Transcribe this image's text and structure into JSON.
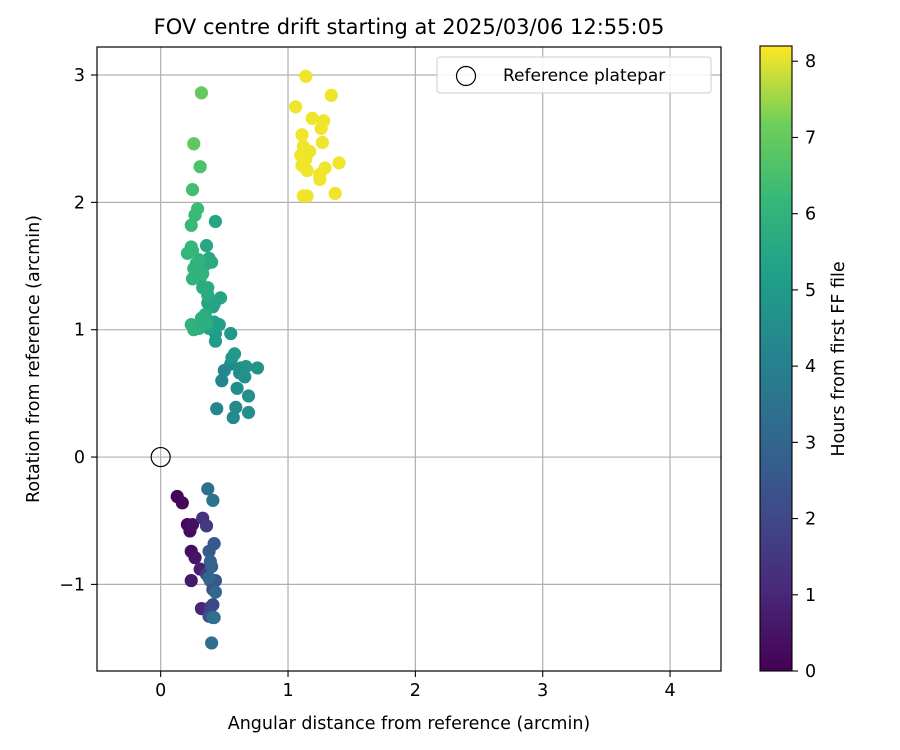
{
  "chart_data": {
    "type": "scatter",
    "title": "FOV centre drift starting at 2025/03/06 12:55:05",
    "xlabel": "Angular distance from reference (arcmin)",
    "ylabel": "Rotation from reference (arcmin)",
    "xlim": [
      -0.5,
      4.4
    ],
    "ylim": [
      -1.68,
      3.22
    ],
    "xticks": [
      0,
      1,
      2,
      3,
      4
    ],
    "xtick_labels": [
      "0",
      "1",
      "2",
      "3",
      "4"
    ],
    "yticks": [
      -1,
      0,
      1,
      2,
      3
    ],
    "ytick_labels": [
      "−1",
      "0",
      "1",
      "2",
      "3"
    ],
    "grid": true,
    "legend": {
      "position": "top-right",
      "entries": [
        "Reference platepar"
      ]
    },
    "colorbar": {
      "label": "Hours from first FF file",
      "range": [
        0,
        8.2
      ],
      "ticks": [
        0,
        1,
        2,
        3,
        4,
        5,
        6,
        7,
        8
      ],
      "tick_labels": [
        "0",
        "1",
        "2",
        "3",
        "4",
        "5",
        "6",
        "7",
        "8"
      ],
      "colormap": "viridis"
    },
    "reference_point": {
      "x": 0,
      "y": 0,
      "label": "Reference platepar"
    },
    "points": [
      {
        "x": 0.13,
        "y": -0.31,
        "c": 0.1
      },
      {
        "x": 0.17,
        "y": -0.36,
        "c": 0.2
      },
      {
        "x": 0.21,
        "y": -0.53,
        "c": 0.2
      },
      {
        "x": 0.23,
        "y": -0.58,
        "c": 0.3
      },
      {
        "x": 0.25,
        "y": -0.53,
        "c": 0.4
      },
      {
        "x": 0.24,
        "y": -0.74,
        "c": 0.4
      },
      {
        "x": 0.27,
        "y": -0.79,
        "c": 0.5
      },
      {
        "x": 0.24,
        "y": -0.97,
        "c": 0.6
      },
      {
        "x": 0.31,
        "y": -0.88,
        "c": 0.8
      },
      {
        "x": 0.32,
        "y": -1.19,
        "c": 1.0
      },
      {
        "x": 0.33,
        "y": -0.48,
        "c": 1.4
      },
      {
        "x": 0.36,
        "y": -0.54,
        "c": 1.6
      },
      {
        "x": 0.36,
        "y": -0.92,
        "c": 1.7
      },
      {
        "x": 0.39,
        "y": -1.18,
        "c": 1.8
      },
      {
        "x": 0.41,
        "y": -1.16,
        "c": 2.0
      },
      {
        "x": 0.38,
        "y": -1.25,
        "c": 2.1
      },
      {
        "x": 0.41,
        "y": -1.04,
        "c": 2.2
      },
      {
        "x": 0.39,
        "y": -0.97,
        "c": 2.4
      },
      {
        "x": 0.43,
        "y": -0.97,
        "c": 2.5
      },
      {
        "x": 0.42,
        "y": -0.68,
        "c": 2.5
      },
      {
        "x": 0.38,
        "y": -0.74,
        "c": 2.6
      },
      {
        "x": 0.39,
        "y": -0.82,
        "c": 2.8
      },
      {
        "x": 0.4,
        "y": -0.86,
        "c": 2.9
      },
      {
        "x": 0.38,
        "y": -0.95,
        "c": 3.0
      },
      {
        "x": 0.43,
        "y": -1.06,
        "c": 3.1
      },
      {
        "x": 0.41,
        "y": -1.26,
        "c": 3.2
      },
      {
        "x": 0.4,
        "y": -1.46,
        "c": 3.3
      },
      {
        "x": 0.42,
        "y": -1.26,
        "c": 3.4
      },
      {
        "x": 0.37,
        "y": -0.25,
        "c": 3.4
      },
      {
        "x": 0.41,
        "y": -0.34,
        "c": 3.5
      },
      {
        "x": 0.44,
        "y": 0.38,
        "c": 4.2
      },
      {
        "x": 0.48,
        "y": 0.6,
        "c": 4.3
      },
      {
        "x": 0.5,
        "y": 0.68,
        "c": 4.3
      },
      {
        "x": 0.55,
        "y": 0.73,
        "c": 4.4
      },
      {
        "x": 0.57,
        "y": 0.31,
        "c": 4.4
      },
      {
        "x": 0.59,
        "y": 0.39,
        "c": 4.4
      },
      {
        "x": 0.6,
        "y": 0.54,
        "c": 4.5
      },
      {
        "x": 0.62,
        "y": 0.66,
        "c": 4.5
      },
      {
        "x": 0.63,
        "y": 0.7,
        "c": 4.5
      },
      {
        "x": 0.66,
        "y": 0.63,
        "c": 4.6
      },
      {
        "x": 0.69,
        "y": 0.48,
        "c": 4.6
      },
      {
        "x": 0.69,
        "y": 0.35,
        "c": 4.6
      },
      {
        "x": 0.67,
        "y": 0.71,
        "c": 4.7
      },
      {
        "x": 0.76,
        "y": 0.7,
        "c": 4.7
      },
      {
        "x": 0.56,
        "y": 0.78,
        "c": 4.8
      },
      {
        "x": 0.58,
        "y": 0.81,
        "c": 4.9
      },
      {
        "x": 0.55,
        "y": 0.97,
        "c": 5.0
      },
      {
        "x": 0.43,
        "y": 0.91,
        "c": 5.1
      },
      {
        "x": 0.43,
        "y": 0.97,
        "c": 5.1
      },
      {
        "x": 0.46,
        "y": 1.04,
        "c": 5.2
      },
      {
        "x": 0.42,
        "y": 1.06,
        "c": 5.2
      },
      {
        "x": 0.38,
        "y": 1.01,
        "c": 5.3
      },
      {
        "x": 0.37,
        "y": 1.21,
        "c": 5.3
      },
      {
        "x": 0.42,
        "y": 1.2,
        "c": 5.4
      },
      {
        "x": 0.47,
        "y": 1.25,
        "c": 5.4
      },
      {
        "x": 0.41,
        "y": 1.18,
        "c": 5.4
      },
      {
        "x": 0.43,
        "y": 1.85,
        "c": 5.4
      },
      {
        "x": 0.36,
        "y": 1.66,
        "c": 5.5
      },
      {
        "x": 0.38,
        "y": 1.56,
        "c": 5.5
      },
      {
        "x": 0.35,
        "y": 1.51,
        "c": 5.6
      },
      {
        "x": 0.4,
        "y": 1.53,
        "c": 5.6
      },
      {
        "x": 0.37,
        "y": 1.33,
        "c": 5.6
      },
      {
        "x": 0.37,
        "y": 1.27,
        "c": 5.6
      },
      {
        "x": 0.33,
        "y": 1.33,
        "c": 5.7
      },
      {
        "x": 0.31,
        "y": 1.4,
        "c": 5.7
      },
      {
        "x": 0.35,
        "y": 1.12,
        "c": 5.7
      },
      {
        "x": 0.32,
        "y": 1.09,
        "c": 5.8
      },
      {
        "x": 0.36,
        "y": 1.05,
        "c": 5.8
      },
      {
        "x": 0.3,
        "y": 1.01,
        "c": 5.8
      },
      {
        "x": 0.24,
        "y": 1.04,
        "c": 5.9
      },
      {
        "x": 0.26,
        "y": 1.0,
        "c": 5.9
      },
      {
        "x": 0.3,
        "y": 1.55,
        "c": 5.9
      },
      {
        "x": 0.33,
        "y": 1.44,
        "c": 6.0
      },
      {
        "x": 0.28,
        "y": 1.52,
        "c": 6.0
      },
      {
        "x": 0.25,
        "y": 1.4,
        "c": 6.0
      },
      {
        "x": 0.26,
        "y": 1.48,
        "c": 6.0
      },
      {
        "x": 0.21,
        "y": 1.6,
        "c": 6.1
      },
      {
        "x": 0.25,
        "y": 1.62,
        "c": 6.1
      },
      {
        "x": 0.24,
        "y": 1.65,
        "c": 6.1
      },
      {
        "x": 0.24,
        "y": 1.82,
        "c": 6.2
      },
      {
        "x": 0.27,
        "y": 1.9,
        "c": 6.2
      },
      {
        "x": 0.29,
        "y": 1.95,
        "c": 6.3
      },
      {
        "x": 0.25,
        "y": 2.1,
        "c": 6.4
      },
      {
        "x": 0.31,
        "y": 2.28,
        "c": 6.6
      },
      {
        "x": 0.26,
        "y": 2.46,
        "c": 6.9
      },
      {
        "x": 0.32,
        "y": 2.86,
        "c": 7.0
      },
      {
        "x": 1.14,
        "y": 2.99,
        "c": 8.1
      },
      {
        "x": 1.06,
        "y": 2.75,
        "c": 8.1
      },
      {
        "x": 1.34,
        "y": 2.84,
        "c": 8.1
      },
      {
        "x": 1.19,
        "y": 2.66,
        "c": 8.1
      },
      {
        "x": 1.28,
        "y": 2.64,
        "c": 8.1
      },
      {
        "x": 1.26,
        "y": 2.58,
        "c": 8.1
      },
      {
        "x": 1.11,
        "y": 2.53,
        "c": 8.1
      },
      {
        "x": 1.27,
        "y": 2.47,
        "c": 8.1
      },
      {
        "x": 1.12,
        "y": 2.44,
        "c": 8.1
      },
      {
        "x": 1.17,
        "y": 2.4,
        "c": 8.1
      },
      {
        "x": 1.1,
        "y": 2.37,
        "c": 8.1
      },
      {
        "x": 1.14,
        "y": 2.34,
        "c": 8.1
      },
      {
        "x": 1.4,
        "y": 2.31,
        "c": 8.1
      },
      {
        "x": 1.11,
        "y": 2.29,
        "c": 8.1
      },
      {
        "x": 1.29,
        "y": 2.27,
        "c": 8.1
      },
      {
        "x": 1.15,
        "y": 2.25,
        "c": 8.1
      },
      {
        "x": 1.25,
        "y": 2.22,
        "c": 8.1
      },
      {
        "x": 1.25,
        "y": 2.18,
        "c": 8.1
      },
      {
        "x": 1.12,
        "y": 2.05,
        "c": 8.1
      },
      {
        "x": 1.15,
        "y": 2.05,
        "c": 8.1
      },
      {
        "x": 1.37,
        "y": 2.07,
        "c": 8.1
      }
    ]
  }
}
